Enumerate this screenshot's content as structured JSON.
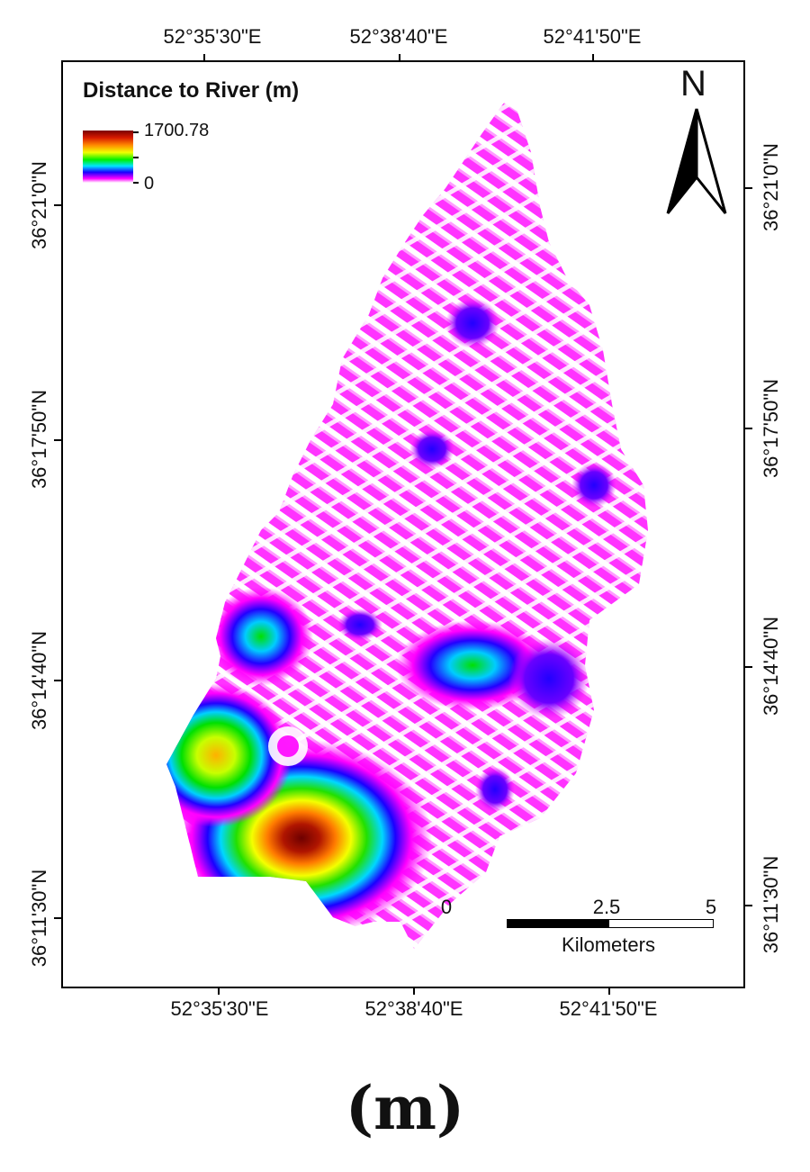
{
  "map": {
    "legend": {
      "title": "Distance to River (m)",
      "max_label": "1700.78",
      "min_label": "0",
      "ramp_colors": [
        "#7a0000",
        "#d81b00",
        "#ff8a00",
        "#f2ff00",
        "#00f000",
        "#00e5ff",
        "#1a00ff",
        "#ff00ff",
        "#ffffff"
      ]
    },
    "north_arrow": {
      "label": "N",
      "icon": "north-arrow-icon"
    },
    "scale_bar": {
      "labels": [
        "0",
        "2.5",
        "5"
      ],
      "unit": "Kilometers"
    },
    "graticule": {
      "top_longitudes": [
        "52°35'30\"E",
        "52°38'40\"E",
        "52°41'50\"E"
      ],
      "bottom_longitudes": [
        "52°35'30\"E",
        "52°38'40\"E",
        "52°41'50\"E"
      ],
      "left_latitudes": [
        "36°21'0\"N",
        "36°17'50\"N",
        "36°14'40\"N",
        "36°11'30\"N"
      ],
      "right_latitudes": [
        "36°21'0\"N",
        "36°17'50\"N",
        "36°14'40\"N",
        "36°11'30\"N"
      ]
    }
  },
  "caption": "(m)"
}
